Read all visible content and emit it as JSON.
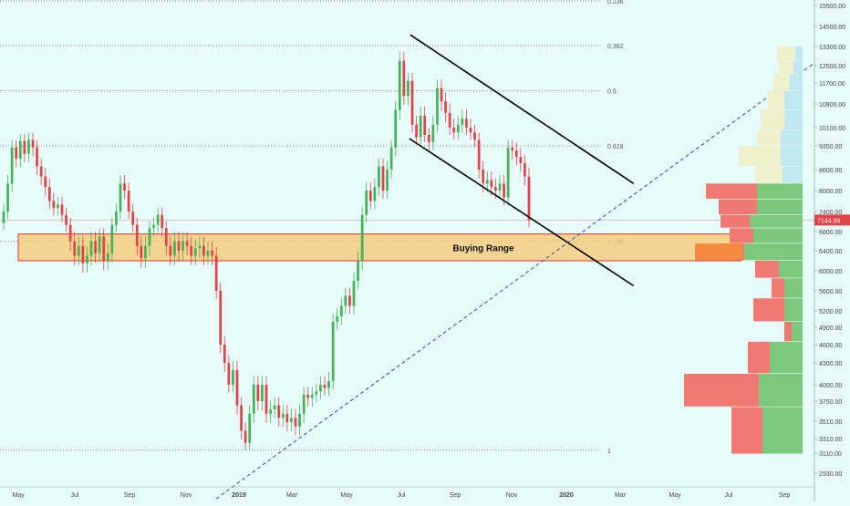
{
  "chart_data": {
    "type": "candlestick",
    "title": "",
    "x_labels": [
      "May",
      "Jul",
      "Sep",
      "Nov",
      "2019",
      "Mar",
      "May",
      "Jul",
      "Sep",
      "Nov",
      "2020",
      "Mar",
      "May",
      "Jul",
      "Sep"
    ],
    "y_ticks": [
      2930,
      3110,
      3310,
      3510,
      3750,
      4000,
      4300,
      4600,
      4900,
      5200,
      5600,
      6000,
      6400,
      6800,
      7400,
      8000,
      8600,
      9350,
      10100,
      10900,
      11700,
      12500,
      13300,
      14500,
      15500
    ],
    "y_tick_labels": [
      "2930.00",
      "3110.00",
      "3310.00",
      "3510.00",
      "3750.00",
      "4000.00",
      "4300.00",
      "4600.00",
      "4900.00",
      "5200.00",
      "5600.00",
      "6000.00",
      "6400.00",
      "6800.00",
      "7400.00",
      "8000.00",
      "8600.00",
      "9350.00",
      "10100.00",
      "10900.00",
      "11700.00",
      "12500.00",
      "13300.00",
      "14500.00",
      "15500.00"
    ],
    "current_price": 7144.99,
    "current_price_label": "7144.99",
    "fib_levels": [
      {
        "label": "0.236",
        "price": 16400
      },
      {
        "label": "0.382",
        "price": 13350
      },
      {
        "label": "0.5",
        "price": 11400
      },
      {
        "label": "0.618",
        "price": 9350
      },
      {
        "label": "0.786",
        "price": 6600
      },
      {
        "label": "1",
        "price": 3150
      }
    ],
    "zone": {
      "label": "Buying Range",
      "low": 6200,
      "high": 6750
    },
    "channel": {
      "upper": {
        "from": {
          "x": "2019-06-27",
          "y": 14000
        },
        "to": {
          "x": "2020-02-24",
          "y": 8200
        }
      },
      "lower": {
        "from": {
          "x": "2019-06-26",
          "y": 9650
        },
        "to": {
          "x": "2020-02-24",
          "y": 5700
        }
      }
    },
    "trendline": {
      "from": {
        "x": "2018-12-01",
        "y": 2700
      },
      "to": {
        "x": "2020-10-01",
        "y": 13350
      }
    },
    "candles": [
      {
        "o": 7050,
        "c": 7400
      },
      {
        "o": 7400,
        "c": 8200
      },
      {
        "o": 8200,
        "c": 9300
      },
      {
        "o": 9300,
        "c": 8950
      },
      {
        "o": 8950,
        "c": 9550
      },
      {
        "o": 9550,
        "c": 9100
      },
      {
        "o": 9100,
        "c": 9600
      },
      {
        "o": 9600,
        "c": 9300
      },
      {
        "o": 9300,
        "c": 8700
      },
      {
        "o": 8700,
        "c": 8400
      },
      {
        "o": 8400,
        "c": 8100
      },
      {
        "o": 8100,
        "c": 7700
      },
      {
        "o": 7700,
        "c": 7500
      },
      {
        "o": 7500,
        "c": 7600
      },
      {
        "o": 7600,
        "c": 7300
      },
      {
        "o": 7300,
        "c": 7000
      },
      {
        "o": 7000,
        "c": 6600
      },
      {
        "o": 6600,
        "c": 6300
      },
      {
        "o": 6300,
        "c": 6500
      },
      {
        "o": 6500,
        "c": 6150
      },
      {
        "o": 6150,
        "c": 6300
      },
      {
        "o": 6300,
        "c": 6600
      },
      {
        "o": 6600,
        "c": 6350
      },
      {
        "o": 6350,
        "c": 6700
      },
      {
        "o": 6700,
        "c": 6200
      },
      {
        "o": 6200,
        "c": 6350
      },
      {
        "o": 6350,
        "c": 7000
      },
      {
        "o": 7000,
        "c": 7400
      },
      {
        "o": 7400,
        "c": 8200
      },
      {
        "o": 8200,
        "c": 8000
      },
      {
        "o": 8000,
        "c": 7400
      },
      {
        "o": 7400,
        "c": 7000
      },
      {
        "o": 7000,
        "c": 6500
      },
      {
        "o": 6500,
        "c": 6250
      },
      {
        "o": 6250,
        "c": 6500
      },
      {
        "o": 6500,
        "c": 6900
      },
      {
        "o": 6900,
        "c": 7000
      },
      {
        "o": 7000,
        "c": 7300
      },
      {
        "o": 7300,
        "c": 6900
      },
      {
        "o": 6900,
        "c": 6500
      },
      {
        "o": 6500,
        "c": 6300
      },
      {
        "o": 6300,
        "c": 6600
      },
      {
        "o": 6600,
        "c": 6400
      },
      {
        "o": 6400,
        "c": 6600
      },
      {
        "o": 6600,
        "c": 6500
      },
      {
        "o": 6500,
        "c": 6300
      },
      {
        "o": 6300,
        "c": 6450
      },
      {
        "o": 6450,
        "c": 6500
      },
      {
        "o": 6500,
        "c": 6300
      },
      {
        "o": 6300,
        "c": 6400
      },
      {
        "o": 6400,
        "c": 6300
      },
      {
        "o": 6300,
        "c": 5600
      },
      {
        "o": 5600,
        "c": 4600
      },
      {
        "o": 4600,
        "c": 4300
      },
      {
        "o": 4300,
        "c": 4000
      },
      {
        "o": 4000,
        "c": 4200
      },
      {
        "o": 4200,
        "c": 3700
      },
      {
        "o": 3700,
        "c": 3400
      },
      {
        "o": 3400,
        "c": 3250
      },
      {
        "o": 3250,
        "c": 3600
      },
      {
        "o": 3600,
        "c": 4000
      },
      {
        "o": 4000,
        "c": 3750
      },
      {
        "o": 3750,
        "c": 4000
      },
      {
        "o": 4000,
        "c": 3600
      },
      {
        "o": 3600,
        "c": 3650
      },
      {
        "o": 3650,
        "c": 3700
      },
      {
        "o": 3700,
        "c": 3550
      },
      {
        "o": 3550,
        "c": 3600
      },
      {
        "o": 3600,
        "c": 3500
      },
      {
        "o": 3500,
        "c": 3550
      },
      {
        "o": 3550,
        "c": 3450
      },
      {
        "o": 3450,
        "c": 3600
      },
      {
        "o": 3600,
        "c": 3850
      },
      {
        "o": 3850,
        "c": 3800
      },
      {
        "o": 3800,
        "c": 3850
      },
      {
        "o": 3850,
        "c": 3900
      },
      {
        "o": 3900,
        "c": 4000
      },
      {
        "o": 4000,
        "c": 3950
      },
      {
        "o": 3950,
        "c": 4050
      },
      {
        "o": 4050,
        "c": 5000
      },
      {
        "o": 5000,
        "c": 5100
      },
      {
        "o": 5100,
        "c": 5300
      },
      {
        "o": 5300,
        "c": 5500
      },
      {
        "o": 5500,
        "c": 5300
      },
      {
        "o": 5300,
        "c": 5800
      },
      {
        "o": 5800,
        "c": 6200
      },
      {
        "o": 6200,
        "c": 7300
      },
      {
        "o": 7300,
        "c": 8000
      },
      {
        "o": 8000,
        "c": 7700
      },
      {
        "o": 7700,
        "c": 8100
      },
      {
        "o": 8100,
        "c": 8700
      },
      {
        "o": 8700,
        "c": 8000
      },
      {
        "o": 8000,
        "c": 8600
      },
      {
        "o": 8600,
        "c": 9300
      },
      {
        "o": 9300,
        "c": 10700
      },
      {
        "o": 10700,
        "c": 12700
      },
      {
        "o": 12700,
        "c": 11200
      },
      {
        "o": 11200,
        "c": 11800
      },
      {
        "o": 11800,
        "c": 10200
      },
      {
        "o": 10200,
        "c": 9700
      },
      {
        "o": 9700,
        "c": 10500
      },
      {
        "o": 10500,
        "c": 9800
      },
      {
        "o": 9800,
        "c": 9500
      },
      {
        "o": 9500,
        "c": 10200
      },
      {
        "o": 10200,
        "c": 11500
      },
      {
        "o": 11500,
        "c": 11000
      },
      {
        "o": 11000,
        "c": 10600
      },
      {
        "o": 10600,
        "c": 10100
      },
      {
        "o": 10100,
        "c": 9900
      },
      {
        "o": 9900,
        "c": 10200
      },
      {
        "o": 10200,
        "c": 10400
      },
      {
        "o": 10400,
        "c": 10100
      },
      {
        "o": 10100,
        "c": 9900
      },
      {
        "o": 9900,
        "c": 9600
      },
      {
        "o": 9600,
        "c": 8600
      },
      {
        "o": 8600,
        "c": 8200
      },
      {
        "o": 8200,
        "c": 8300
      },
      {
        "o": 8300,
        "c": 8100
      },
      {
        "o": 8100,
        "c": 8000
      },
      {
        "o": 8000,
        "c": 8200
      },
      {
        "o": 8200,
        "c": 7800
      },
      {
        "o": 7800,
        "c": 9300
      },
      {
        "o": 9300,
        "c": 9200
      },
      {
        "o": 9200,
        "c": 9000
      },
      {
        "o": 9000,
        "c": 8800
      },
      {
        "o": 8800,
        "c": 8400
      },
      {
        "o": 8400,
        "c": 7144.99
      }
    ],
    "volume_profile": [
      {
        "low": 12700,
        "high": 13300,
        "left": 20,
        "right": 8,
        "left_color": "#edf0c8",
        "right_color": "#bfe8f0"
      },
      {
        "low": 12100,
        "high": 12700,
        "left": 16,
        "right": 10,
        "left_color": "#edf0c8",
        "right_color": "#bfe8f0"
      },
      {
        "low": 11400,
        "high": 12100,
        "left": 18,
        "right": 14,
        "left_color": "#edf0c8",
        "right_color": "#bfe8f0"
      },
      {
        "low": 10700,
        "high": 11400,
        "left": 18,
        "right": 20,
        "left_color": "#edf0c8",
        "right_color": "#bfe8f0"
      },
      {
        "low": 10000,
        "high": 10700,
        "left": 26,
        "right": 20,
        "left_color": "#edf0c8",
        "right_color": "#bfe8f0"
      },
      {
        "low": 9350,
        "high": 10000,
        "left": 26,
        "right": 24,
        "left_color": "#edf0c8",
        "right_color": "#bfe8f0"
      },
      {
        "low": 8700,
        "high": 9350,
        "left": 46,
        "right": 24,
        "left_color": "#edf0c8",
        "right_color": "#bfe8f0"
      },
      {
        "low": 8200,
        "high": 8700,
        "left": 30,
        "right": 22,
        "left_color": "#edf0c8",
        "right_color": "#bfe8f0"
      },
      {
        "low": 7750,
        "high": 8200,
        "left": 56,
        "right": 50,
        "left_color": "#f07a72",
        "right_color": "#7dc97c"
      },
      {
        "low": 7300,
        "high": 7750,
        "left": 42,
        "right": 50,
        "left_color": "#f07a72",
        "right_color": "#7dc97c"
      },
      {
        "low": 6900,
        "high": 7300,
        "left": 32,
        "right": 58,
        "left_color": "#f07a72",
        "right_color": "#7dc97c"
      },
      {
        "low": 6550,
        "high": 6900,
        "left": 26,
        "right": 54,
        "left_color": "#f07a72",
        "right_color": "#7dc97c"
      },
      {
        "low": 6200,
        "high": 6550,
        "left": 18,
        "right": 64,
        "left_color": "#f07a72",
        "right_color": "#7dc97c"
      },
      {
        "low": 5850,
        "high": 6200,
        "left": 26,
        "right": 26,
        "left_color": "#f07a72",
        "right_color": "#7dc97c"
      },
      {
        "low": 5450,
        "high": 5850,
        "left": 14,
        "right": 20,
        "left_color": "#f07a72",
        "right_color": "#7dc97c"
      },
      {
        "low": 5000,
        "high": 5450,
        "left": 34,
        "right": 20,
        "left_color": "#f07a72",
        "right_color": "#7dc97c"
      },
      {
        "low": 4650,
        "high": 5000,
        "left": 8,
        "right": 12,
        "left_color": "#f07a72",
        "right_color": "#7dc97c"
      },
      {
        "low": 4150,
        "high": 4650,
        "left": 24,
        "right": 36,
        "left_color": "#f07a72",
        "right_color": "#7dc97c"
      },
      {
        "low": 3680,
        "high": 4150,
        "left": 82,
        "right": 48,
        "left_color": "#f07a72",
        "right_color": "#7dc97c"
      },
      {
        "low": 3100,
        "high": 3680,
        "left": 34,
        "right": 44,
        "left_color": "#f07a72",
        "right_color": "#7dc97c"
      }
    ],
    "volume_highlight": {
      "low": 6200,
      "high": 6550,
      "left": 52,
      "color": "#f5893f"
    },
    "colors": {
      "background": "#e8fbfb",
      "up": "#44b25a",
      "down": "#e0434a",
      "zone_fill": "#f5cd7e",
      "zone_border": "#e83131",
      "grid_dotted": "#888888",
      "channel": "#000000",
      "trendline": "#2d4aa6",
      "price_label_bg": "#e0434a"
    }
  }
}
